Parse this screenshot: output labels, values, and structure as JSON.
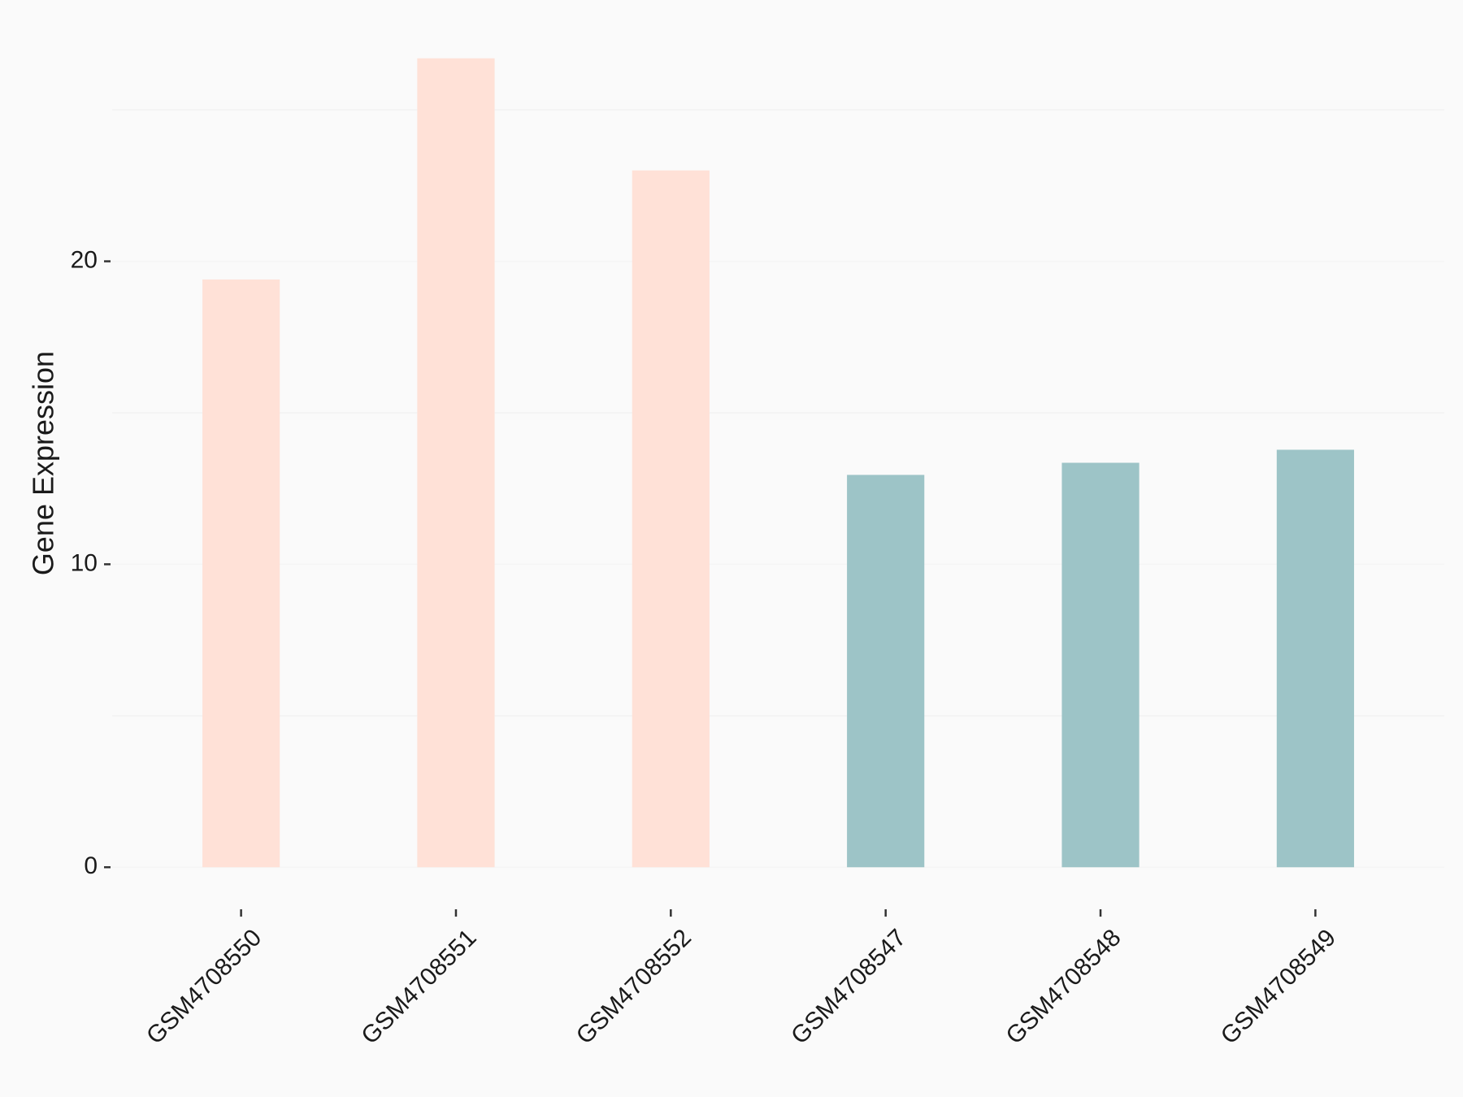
{
  "chart_data": {
    "type": "bar",
    "y_label": "Gene Expression",
    "categories": [
      "GSM4708550",
      "GSM4708551",
      "GSM4708552",
      "GSM4708547",
      "GSM4708548",
      "GSM4708549"
    ],
    "values": [
      19.4,
      26.7,
      23.0,
      12.95,
      13.35,
      13.78
    ],
    "colors": [
      "#ffe1d7",
      "#ffe1d7",
      "#ffe1d7",
      "#9dc4c7",
      "#9dc4c7",
      "#9dc4c7"
    ],
    "ylim": [
      -1.335,
      28.035
    ],
    "yticks": [
      0,
      10,
      20
    ],
    "minor_yticks": [
      5,
      15,
      25
    ],
    "grid": true
  }
}
